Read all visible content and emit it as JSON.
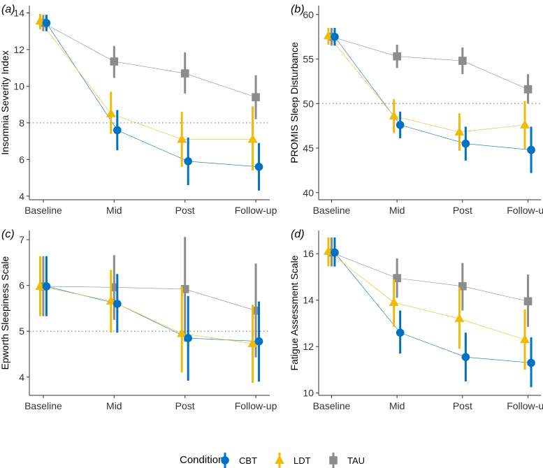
{
  "chart_data": [
    {
      "type": "line",
      "panel_label": "(a)",
      "panel_letter": "a",
      "ylabel": "Insomnia Severity Index",
      "xlabel": "",
      "categories": [
        "Baseline",
        "Mid",
        "Post",
        "Follow-up"
      ],
      "ylim": [
        3.8,
        14.4
      ],
      "yticks": [
        4,
        6,
        8,
        10,
        12,
        14
      ],
      "reference_line": 8,
      "series": [
        {
          "name": "CBT",
          "values": [
            13.45,
            7.6,
            5.9,
            5.6
          ],
          "lower": [
            13.0,
            6.5,
            4.6,
            4.3
          ],
          "upper": [
            13.9,
            8.7,
            7.2,
            6.9
          ]
        },
        {
          "name": "LDT",
          "values": [
            13.55,
            8.5,
            7.1,
            7.1
          ],
          "lower": [
            13.1,
            7.4,
            5.6,
            5.4
          ],
          "upper": [
            13.95,
            9.7,
            8.6,
            8.9
          ]
        },
        {
          "name": "TAU",
          "values": [
            13.45,
            11.35,
            10.7,
            9.4
          ],
          "lower": [
            13.0,
            10.45,
            9.6,
            8.2
          ],
          "upper": [
            13.9,
            12.2,
            11.85,
            10.6
          ]
        }
      ]
    },
    {
      "type": "line",
      "panel_label": "(b)",
      "panel_letter": "b",
      "ylabel": "PROMIS Sleep Disturbance",
      "xlabel": "",
      "categories": [
        "Baseline",
        "Mid",
        "Post",
        "Follow-up"
      ],
      "ylim": [
        39.2,
        61
      ],
      "yticks": [
        40,
        45,
        50,
        55,
        60
      ],
      "reference_line": 50,
      "series": [
        {
          "name": "CBT",
          "values": [
            57.5,
            47.6,
            45.5,
            44.8
          ],
          "lower": [
            56.5,
            46.1,
            43.6,
            42.2
          ],
          "upper": [
            58.5,
            49.1,
            47.4,
            47.4
          ]
        },
        {
          "name": "LDT",
          "values": [
            57.6,
            48.6,
            46.8,
            47.6
          ],
          "lower": [
            56.6,
            46.7,
            44.7,
            44.9
          ],
          "upper": [
            58.5,
            50.5,
            48.9,
            50.3
          ]
        },
        {
          "name": "TAU",
          "values": [
            57.5,
            55.3,
            54.8,
            51.6
          ],
          "lower": [
            56.5,
            54.0,
            53.3,
            50.0
          ],
          "upper": [
            58.5,
            56.6,
            56.3,
            53.3
          ]
        }
      ]
    },
    {
      "type": "line",
      "panel_label": "(c)",
      "panel_letter": "c",
      "ylabel": "Epworth Sleepiness Scale",
      "xlabel": "",
      "categories": [
        "Baseline",
        "Mid",
        "Post",
        "Follow-up"
      ],
      "ylim": [
        3.6,
        7.2
      ],
      "yticks": [
        4,
        5,
        6,
        7
      ],
      "reference_line": 5,
      "series": [
        {
          "name": "CBT",
          "values": [
            5.98,
            5.6,
            4.85,
            4.78
          ],
          "lower": [
            5.33,
            4.97,
            3.92,
            3.9
          ],
          "upper": [
            6.64,
            6.25,
            5.77,
            5.65
          ]
        },
        {
          "name": "LDT",
          "values": [
            5.98,
            5.66,
            4.95,
            4.73
          ],
          "lower": [
            5.33,
            4.97,
            4.1,
            3.87
          ],
          "upper": [
            6.64,
            6.34,
            5.98,
            5.58
          ]
        },
        {
          "name": "TAU",
          "values": [
            5.98,
            5.96,
            5.92,
            5.45
          ],
          "lower": [
            5.33,
            5.25,
            4.77,
            4.43
          ],
          "upper": [
            6.64,
            6.66,
            7.06,
            6.48
          ]
        }
      ]
    },
    {
      "type": "line",
      "panel_label": "(d)",
      "panel_letter": "d",
      "ylabel": "Fatigue Assessment Scale",
      "xlabel": "",
      "categories": [
        "Baseline",
        "Mid",
        "Post",
        "Follow-up"
      ],
      "ylim": [
        9.9,
        17
      ],
      "yticks": [
        10,
        12,
        14,
        16
      ],
      "reference_line": null,
      "series": [
        {
          "name": "CBT",
          "values": [
            16.05,
            12.6,
            11.55,
            11.3
          ],
          "lower": [
            15.45,
            11.7,
            10.5,
            10.25
          ],
          "upper": [
            16.7,
            13.55,
            12.6,
            12.4
          ]
        },
        {
          "name": "LDT",
          "values": [
            16.1,
            13.9,
            13.2,
            12.3
          ],
          "lower": [
            15.45,
            12.85,
            11.9,
            11.0
          ],
          "upper": [
            16.7,
            14.9,
            14.55,
            13.6
          ]
        },
        {
          "name": "TAU",
          "values": [
            16.05,
            14.95,
            14.6,
            13.95
          ],
          "lower": [
            15.45,
            14.1,
            13.55,
            12.85
          ],
          "upper": [
            16.7,
            15.8,
            15.6,
            15.1
          ]
        }
      ]
    }
  ],
  "legend": {
    "title": "Condition",
    "items": [
      {
        "name": "CBT",
        "color": "#0072C2",
        "shape": "circle"
      },
      {
        "name": "LDT",
        "color": "#EDBB0A",
        "shape": "triangle"
      },
      {
        "name": "TAU",
        "color": "#8C8C8C",
        "shape": "square"
      }
    ]
  },
  "colors": {
    "CBT": "#0072C2",
    "LDT": "#EDBB0A",
    "TAU": "#8C8C8C",
    "reference_line": "#8A8A8A",
    "axis": "#333333"
  }
}
